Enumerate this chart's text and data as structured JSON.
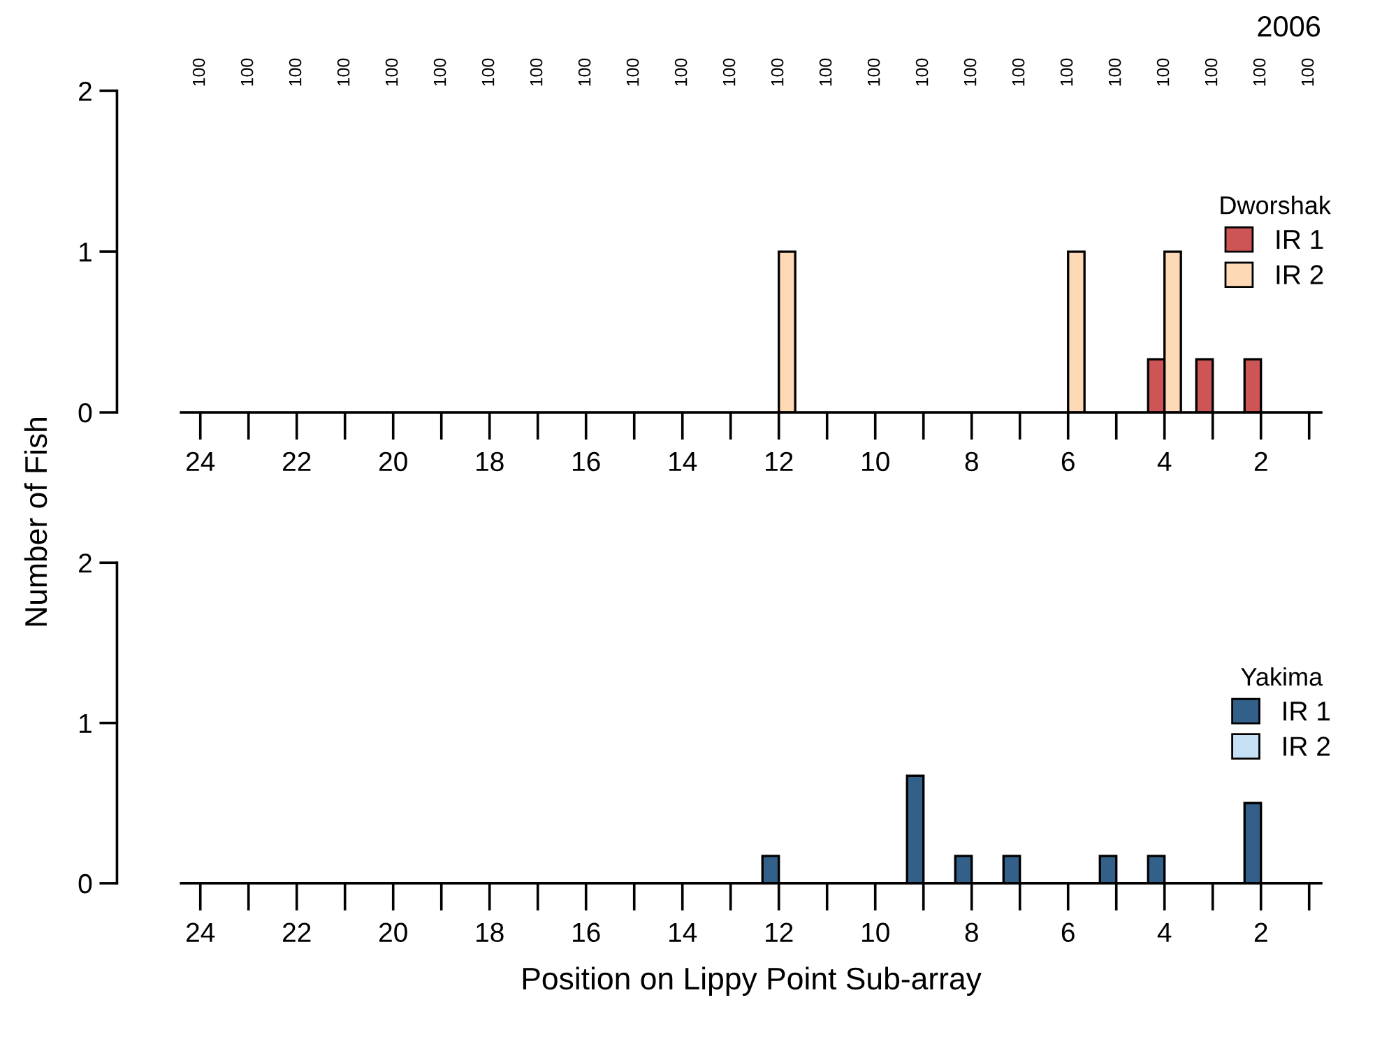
{
  "chart_data": [
    {
      "type": "bar",
      "title": "2006",
      "ylabel": "Number of Fish",
      "legend_title": "Dworshak",
      "legend": "right",
      "categories": [
        "24",
        null,
        "22",
        null,
        "20",
        null,
        "18",
        null,
        "16",
        null,
        "14",
        null,
        "12",
        null,
        "10",
        null,
        "8",
        null,
        "6",
        null,
        "4",
        null,
        "2",
        null
      ],
      "series": [
        {
          "name": "IR 1",
          "color": "#cd5555",
          "values": [
            0,
            0,
            0,
            0,
            0,
            0,
            0,
            0,
            0,
            0,
            0,
            0,
            0,
            0,
            0,
            0,
            0,
            0,
            0,
            0,
            0.33,
            0.33,
            0.33,
            0
          ]
        },
        {
          "name": "IR 2",
          "color": "#fdd9b5",
          "values": [
            0,
            0,
            0,
            0,
            0,
            0,
            0,
            0,
            0,
            0,
            0,
            0,
            1,
            0,
            0,
            0,
            0,
            0,
            1,
            0,
            1,
            0,
            0,
            0
          ]
        }
      ],
      "ylim": [
        0,
        2
      ],
      "yticks": [
        0,
        1,
        2
      ],
      "annotations": [
        "100",
        "100",
        "100",
        "100",
        "100",
        "100",
        "100",
        "100",
        "100",
        "100",
        "100",
        "100",
        "100",
        "100",
        "100",
        "100",
        "100",
        "100",
        "100",
        "100",
        "100",
        "100",
        "100",
        "100"
      ]
    },
    {
      "type": "bar",
      "xlabel": "Position on Lippy Point Sub-array",
      "legend_title": "Yakima",
      "legend": "right",
      "categories": [
        "24",
        null,
        "22",
        null,
        "20",
        null,
        "18",
        null,
        "16",
        null,
        "14",
        null,
        "12",
        null,
        "10",
        null,
        "8",
        null,
        "6",
        null,
        "4",
        null,
        "2",
        null
      ],
      "series": [
        {
          "name": "IR 1",
          "color": "#336088",
          "values": [
            0,
            0,
            0,
            0,
            0,
            0,
            0,
            0,
            0,
            0,
            0,
            0,
            0.17,
            0,
            0,
            0.67,
            0.17,
            0.17,
            0,
            0.17,
            0.17,
            0,
            0.5,
            0
          ]
        },
        {
          "name": "IR 2",
          "color": "#c6e0f5",
          "values": [
            0,
            0,
            0,
            0,
            0,
            0,
            0,
            0,
            0,
            0,
            0,
            0,
            0,
            0,
            0,
            0,
            0,
            0,
            0,
            0,
            0,
            0,
            0,
            0
          ]
        }
      ],
      "ylim": [
        0,
        2
      ],
      "yticks": [
        0,
        1,
        2
      ]
    }
  ]
}
